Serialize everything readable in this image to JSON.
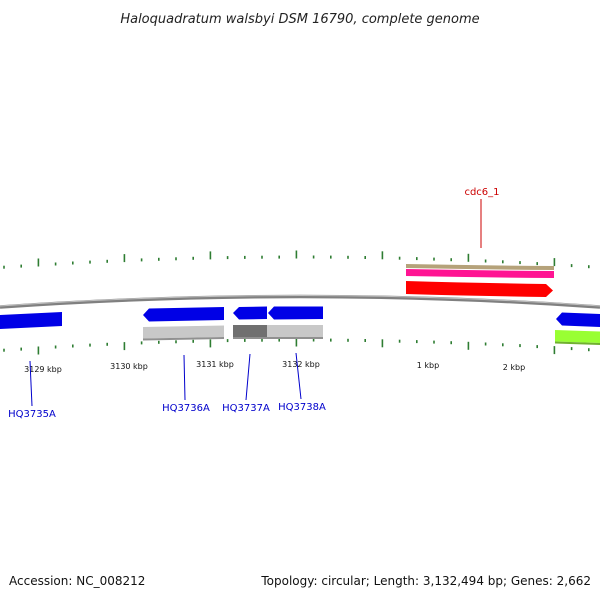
{
  "title": "Haloquadratum walsbyi DSM 16790, complete genome",
  "accession": "Accession: NC_008212",
  "summary": "Topology: circular; Length: 3,132,494 bp; Genes: 2,662",
  "colors": {
    "backbone": "#808080",
    "tick": "#2e7d32",
    "gene_blue": "#0000e6",
    "gene_red": "#ff0000",
    "gene_pink": "#ff1493",
    "gene_tan": "#b5a27a",
    "gene_lime": "#99ff33",
    "feature_gray": "#c8c8c8",
    "feature_dark_gray": "#707070",
    "label_blue": "#0000cc",
    "label_red": "#cc0000"
  },
  "scale_labels": [
    "3129 kbp",
    "3130 kbp",
    "3131 kbp",
    "3132 kbp",
    "1 kbp",
    "2 kbp"
  ],
  "gene_labels": [
    {
      "text": "cdc6_1",
      "color": "label_red"
    },
    {
      "text": "HQ3735A",
      "color": "label_blue"
    },
    {
      "text": "HQ3736A",
      "color": "label_blue"
    },
    {
      "text": "HQ3737A",
      "color": "label_blue"
    },
    {
      "text": "HQ3738A",
      "color": "label_blue"
    }
  ]
}
